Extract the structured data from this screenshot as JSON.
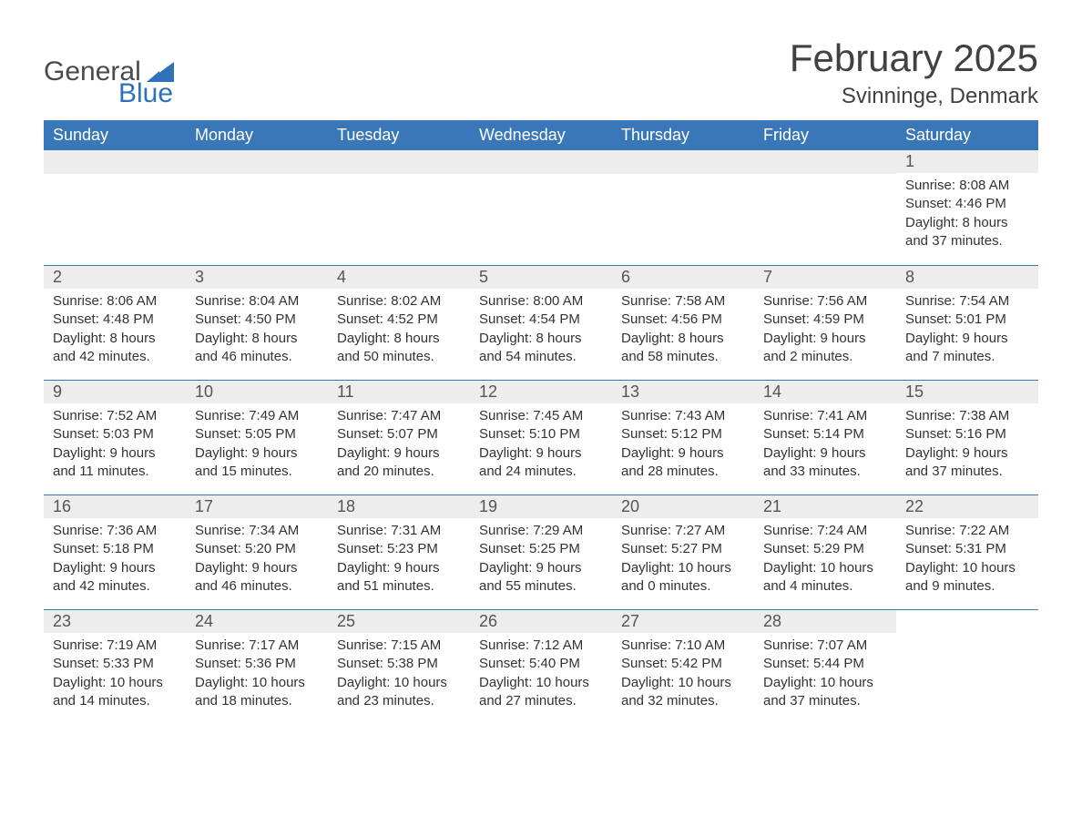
{
  "logo": {
    "text1": "General",
    "text2": "Blue",
    "flag_color": "#2f72b9",
    "text1_color": "#4a4a4a"
  },
  "title": {
    "month": "February 2025",
    "location": "Svinninge, Denmark"
  },
  "colors": {
    "header_bg": "#3a77b8",
    "daynum_bg": "#ededed",
    "border": "#3a77b8",
    "text": "#333333"
  },
  "days_of_week": [
    "Sunday",
    "Monday",
    "Tuesday",
    "Wednesday",
    "Thursday",
    "Friday",
    "Saturday"
  ],
  "labels": {
    "sunrise": "Sunrise:",
    "sunset": "Sunset:",
    "daylight": "Daylight:"
  },
  "weeks": [
    [
      null,
      null,
      null,
      null,
      null,
      null,
      {
        "n": "1",
        "sunrise": "8:08 AM",
        "sunset": "4:46 PM",
        "dl1": "8 hours",
        "dl2": "and 37 minutes."
      }
    ],
    [
      {
        "n": "2",
        "sunrise": "8:06 AM",
        "sunset": "4:48 PM",
        "dl1": "8 hours",
        "dl2": "and 42 minutes."
      },
      {
        "n": "3",
        "sunrise": "8:04 AM",
        "sunset": "4:50 PM",
        "dl1": "8 hours",
        "dl2": "and 46 minutes."
      },
      {
        "n": "4",
        "sunrise": "8:02 AM",
        "sunset": "4:52 PM",
        "dl1": "8 hours",
        "dl2": "and 50 minutes."
      },
      {
        "n": "5",
        "sunrise": "8:00 AM",
        "sunset": "4:54 PM",
        "dl1": "8 hours",
        "dl2": "and 54 minutes."
      },
      {
        "n": "6",
        "sunrise": "7:58 AM",
        "sunset": "4:56 PM",
        "dl1": "8 hours",
        "dl2": "and 58 minutes."
      },
      {
        "n": "7",
        "sunrise": "7:56 AM",
        "sunset": "4:59 PM",
        "dl1": "9 hours",
        "dl2": "and 2 minutes."
      },
      {
        "n": "8",
        "sunrise": "7:54 AM",
        "sunset": "5:01 PM",
        "dl1": "9 hours",
        "dl2": "and 7 minutes."
      }
    ],
    [
      {
        "n": "9",
        "sunrise": "7:52 AM",
        "sunset": "5:03 PM",
        "dl1": "9 hours",
        "dl2": "and 11 minutes."
      },
      {
        "n": "10",
        "sunrise": "7:49 AM",
        "sunset": "5:05 PM",
        "dl1": "9 hours",
        "dl2": "and 15 minutes."
      },
      {
        "n": "11",
        "sunrise": "7:47 AM",
        "sunset": "5:07 PM",
        "dl1": "9 hours",
        "dl2": "and 20 minutes."
      },
      {
        "n": "12",
        "sunrise": "7:45 AM",
        "sunset": "5:10 PM",
        "dl1": "9 hours",
        "dl2": "and 24 minutes."
      },
      {
        "n": "13",
        "sunrise": "7:43 AM",
        "sunset": "5:12 PM",
        "dl1": "9 hours",
        "dl2": "and 28 minutes."
      },
      {
        "n": "14",
        "sunrise": "7:41 AM",
        "sunset": "5:14 PM",
        "dl1": "9 hours",
        "dl2": "and 33 minutes."
      },
      {
        "n": "15",
        "sunrise": "7:38 AM",
        "sunset": "5:16 PM",
        "dl1": "9 hours",
        "dl2": "and 37 minutes."
      }
    ],
    [
      {
        "n": "16",
        "sunrise": "7:36 AM",
        "sunset": "5:18 PM",
        "dl1": "9 hours",
        "dl2": "and 42 minutes."
      },
      {
        "n": "17",
        "sunrise": "7:34 AM",
        "sunset": "5:20 PM",
        "dl1": "9 hours",
        "dl2": "and 46 minutes."
      },
      {
        "n": "18",
        "sunrise": "7:31 AM",
        "sunset": "5:23 PM",
        "dl1": "9 hours",
        "dl2": "and 51 minutes."
      },
      {
        "n": "19",
        "sunrise": "7:29 AM",
        "sunset": "5:25 PM",
        "dl1": "9 hours",
        "dl2": "and 55 minutes."
      },
      {
        "n": "20",
        "sunrise": "7:27 AM",
        "sunset": "5:27 PM",
        "dl1": "10 hours",
        "dl2": "and 0 minutes."
      },
      {
        "n": "21",
        "sunrise": "7:24 AM",
        "sunset": "5:29 PM",
        "dl1": "10 hours",
        "dl2": "and 4 minutes."
      },
      {
        "n": "22",
        "sunrise": "7:22 AM",
        "sunset": "5:31 PM",
        "dl1": "10 hours",
        "dl2": "and 9 minutes."
      }
    ],
    [
      {
        "n": "23",
        "sunrise": "7:19 AM",
        "sunset": "5:33 PM",
        "dl1": "10 hours",
        "dl2": "and 14 minutes."
      },
      {
        "n": "24",
        "sunrise": "7:17 AM",
        "sunset": "5:36 PM",
        "dl1": "10 hours",
        "dl2": "and 18 minutes."
      },
      {
        "n": "25",
        "sunrise": "7:15 AM",
        "sunset": "5:38 PM",
        "dl1": "10 hours",
        "dl2": "and 23 minutes."
      },
      {
        "n": "26",
        "sunrise": "7:12 AM",
        "sunset": "5:40 PM",
        "dl1": "10 hours",
        "dl2": "and 27 minutes."
      },
      {
        "n": "27",
        "sunrise": "7:10 AM",
        "sunset": "5:42 PM",
        "dl1": "10 hours",
        "dl2": "and 32 minutes."
      },
      {
        "n": "28",
        "sunrise": "7:07 AM",
        "sunset": "5:44 PM",
        "dl1": "10 hours",
        "dl2": "and 37 minutes."
      },
      null
    ]
  ]
}
